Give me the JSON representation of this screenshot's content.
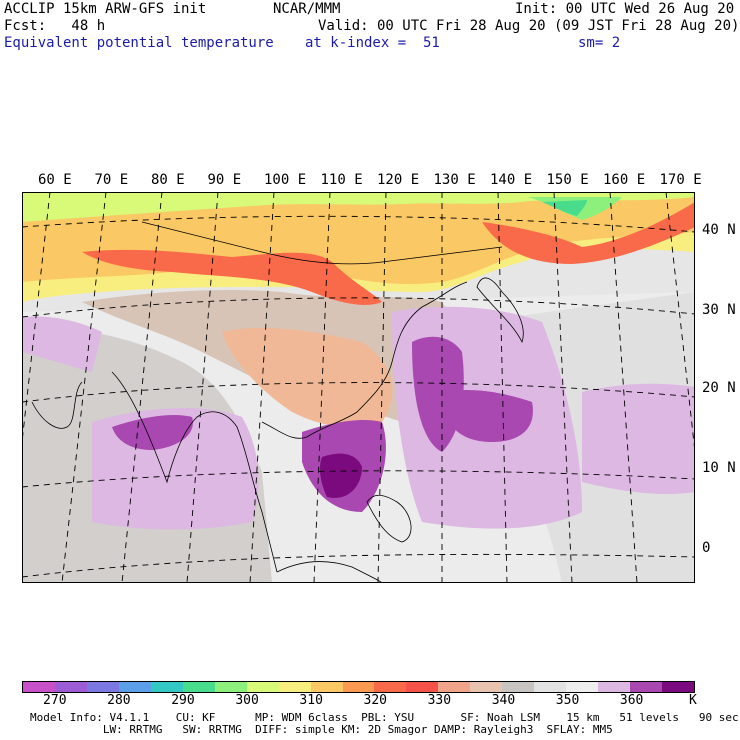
{
  "header": {
    "left_line1": "ACCLIP 15km ARW-GFS init",
    "left_line2": "Fcst:   48 h",
    "left_line3": "Equivalent potential temperature",
    "center_line1": "NCAR/MMM",
    "center_line3": "at k-index =  51",
    "right_line1": "Init: 00 UTC Wed 26 Aug 20",
    "right_line2": "Valid: 00 UTC Fri 28 Aug 20 (09 JST Fri 28 Aug 20)",
    "right_line3": "sm= 2"
  },
  "longitudes": [
    "60 E",
    "70 E",
    "80 E",
    "90 E",
    "100 E",
    "110 E",
    "120 E",
    "130 E",
    "140 E",
    "150 E",
    "160 E",
    "170 E"
  ],
  "latitudes": [
    "40 N",
    "30 N",
    "20 N",
    "10 N",
    "0"
  ],
  "colorbar": {
    "colors": [
      "#c850c8",
      "#9b5cd6",
      "#7b78e2",
      "#5c9ee8",
      "#33c8c4",
      "#48dc8c",
      "#8ef07c",
      "#d8fa78",
      "#f8ee80",
      "#fac864",
      "#fa9a52",
      "#f96a4a",
      "#f5524a",
      "#f0a58a",
      "#e8c4ae",
      "#c8c4c2",
      "#e2e2e2",
      "#eeeeee",
      "#dcb8e2",
      "#a848b0",
      "#7a0a7e"
    ],
    "labels": [
      "270",
      "280",
      "290",
      "300",
      "310",
      "320",
      "330",
      "340",
      "350",
      "360",
      "K"
    ]
  },
  "model_info": {
    "line1": "Model Info: V4.1.1    CU: KF      MP: WDM 6class  PBL: YSU       SF: Noah LSM    15 km   51 levels   90 sec",
    "line2": "           LW: RRTMG   SW: RRTMG  DIFF: simple KM: 2D Smagor DAMP: Rayleigh3  SFLAY: MM5"
  }
}
